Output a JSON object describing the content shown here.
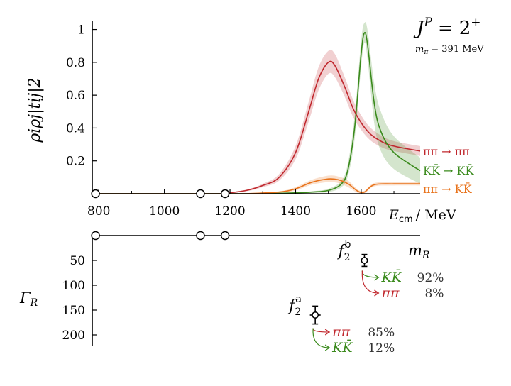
{
  "title": "J^P = 2^+",
  "title_parts": {
    "J": "J",
    "P": "P",
    "eq": "=",
    "val": "2",
    "sup": "+"
  },
  "mass_note": "m_π = 391 MeV",
  "mass_parts": {
    "m": "m",
    "sub": "π",
    "eq": "= 391 MeV"
  },
  "colors": {
    "red": "#c0272d",
    "green": "#3a8a1c",
    "orange": "#e8731c",
    "axis": "#000000"
  },
  "chart_data": [
    {
      "type": "line",
      "ylabel": "ρ_i ρ_j |t_ij|^2",
      "ylabel_display": "ρiρj|tij|2",
      "xlabel": "E_cm / MeV",
      "xlabel_parts": {
        "E": "E",
        "sub": "cm",
        "unit": "/ MeV"
      },
      "xlim": [
        780,
        1780
      ],
      "ylim": [
        0,
        1.05
      ],
      "x_ticks": [
        "800",
        "1000",
        "1200",
        "1400",
        "1600"
      ],
      "y_ticks": [
        "0.2",
        "0.4",
        "0.6",
        "0.8",
        "1"
      ],
      "thresholds": [
        790,
        1110,
        1185
      ],
      "series": [
        {
          "name": "ππ → ππ",
          "color": "red",
          "x": [
            1180,
            1250,
            1300,
            1350,
            1400,
            1440,
            1470,
            1500,
            1520,
            1550,
            1580,
            1620,
            1660,
            1700,
            1780
          ],
          "y": [
            0.0,
            0.02,
            0.05,
            0.1,
            0.25,
            0.5,
            0.7,
            0.8,
            0.78,
            0.65,
            0.5,
            0.38,
            0.32,
            0.29,
            0.26
          ],
          "band": [
            0.0,
            0.005,
            0.01,
            0.02,
            0.04,
            0.06,
            0.07,
            0.07,
            0.07,
            0.06,
            0.05,
            0.04,
            0.035,
            0.03,
            0.03
          ]
        },
        {
          "name": "KK̄ → KK̄",
          "color": "green",
          "x": [
            1300,
            1400,
            1450,
            1500,
            1540,
            1560,
            1580,
            1600,
            1610,
            1620,
            1640,
            1660,
            1700,
            1780
          ],
          "y": [
            0.0,
            0.005,
            0.01,
            0.02,
            0.06,
            0.15,
            0.4,
            0.85,
            0.98,
            0.9,
            0.55,
            0.38,
            0.25,
            0.14
          ],
          "band": [
            0.0,
            0.003,
            0.005,
            0.01,
            0.02,
            0.04,
            0.07,
            0.08,
            0.06,
            0.09,
            0.12,
            0.12,
            0.1,
            0.08
          ]
        },
        {
          "name": "ππ → KK̄",
          "color": "orange",
          "x": [
            1250,
            1350,
            1400,
            1450,
            1500,
            1530,
            1560,
            1590,
            1610,
            1640,
            1700,
            1780
          ],
          "y": [
            0.0,
            0.01,
            0.03,
            0.07,
            0.09,
            0.085,
            0.06,
            0.015,
            0.01,
            0.055,
            0.06,
            0.06
          ],
          "band": [
            0.0,
            0.005,
            0.01,
            0.015,
            0.02,
            0.02,
            0.02,
            0.01,
            0.008,
            0.01,
            0.01,
            0.01
          ]
        }
      ]
    },
    {
      "type": "scatter",
      "xlabel": "m_R",
      "ylabel": "Γ_R",
      "y_ticks": [
        "50",
        "100",
        "150",
        "200"
      ],
      "ylim": [
        0,
        230
      ],
      "thresholds": [
        790,
        1110,
        1185
      ],
      "points": [
        {
          "name": "f2b",
          "label": "f",
          "sub": "2",
          "sup": "b",
          "m": 1610,
          "gamma": 50,
          "m_err": 5,
          "gamma_err": 12,
          "decays": [
            {
              "channel": "KK̄",
              "percent": "92%",
              "color": "green"
            },
            {
              "channel": "ππ",
              "percent": "8%",
              "color": "red"
            }
          ]
        },
        {
          "name": "f2a",
          "label": "f",
          "sub": "2",
          "sup": "a",
          "m": 1460,
          "gamma": 160,
          "m_err": 12,
          "gamma_err": 18,
          "decays": [
            {
              "channel": "ππ",
              "percent": "85%",
              "color": "red"
            },
            {
              "channel": "KK̄",
              "percent": "12%",
              "color": "green"
            }
          ]
        }
      ]
    }
  ]
}
